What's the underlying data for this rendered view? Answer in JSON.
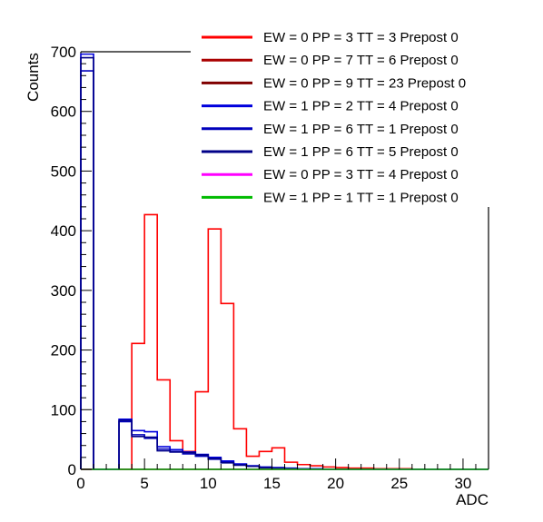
{
  "chart_data": {
    "type": "histogram",
    "xlabel": "ADC",
    "ylabel": "Counts",
    "xlim": [
      0,
      32
    ],
    "ylim": [
      0,
      700
    ],
    "xticks": [
      0,
      5,
      10,
      15,
      20,
      25,
      30
    ],
    "yticks": [
      0,
      100,
      200,
      300,
      400,
      500,
      600,
      700
    ],
    "bin_edges": [
      0,
      1,
      2,
      3,
      4,
      5,
      6,
      7,
      8,
      9,
      10,
      11,
      12,
      13,
      14,
      15,
      16,
      17,
      18,
      19,
      20,
      21,
      22,
      23,
      24,
      25,
      26,
      27,
      28,
      29,
      30,
      31,
      32
    ],
    "legend_position": "top-right",
    "series": [
      {
        "name": "EW = 0 PP = 3 TT = 3 Prepost 0",
        "color": "#ff0000",
        "values": [
          0,
          0,
          0,
          0,
          211,
          427,
          150,
          48,
          30,
          130,
          403,
          278,
          68,
          22,
          30,
          36,
          12,
          8,
          6,
          4,
          3,
          2,
          2,
          1,
          1,
          1,
          0,
          0,
          0,
          0,
          0,
          0
        ]
      },
      {
        "name": "EW = 0 PP = 7 TT = 6 Prepost 0",
        "color": "#aa0000",
        "values": [
          0,
          0,
          0,
          0,
          0,
          0,
          0,
          0,
          0,
          0,
          0,
          0,
          0,
          0,
          0,
          0,
          0,
          0,
          0,
          0,
          0,
          0,
          0,
          0,
          0,
          0,
          0,
          0,
          0,
          0,
          0,
          0
        ]
      },
      {
        "name": "EW = 0 PP = 9 TT = 23 Prepost 0",
        "color": "#800000",
        "values": [
          0,
          0,
          0,
          0,
          0,
          0,
          0,
          0,
          0,
          0,
          0,
          0,
          0,
          0,
          0,
          0,
          0,
          0,
          0,
          0,
          0,
          0,
          0,
          0,
          0,
          0,
          0,
          0,
          0,
          0,
          0,
          0
        ]
      },
      {
        "name": "EW = 1 PP = 2 TT = 4 Prepost 0",
        "color": "#0000dd",
        "values": [
          696,
          0,
          0,
          84,
          65,
          63,
          38,
          33,
          29,
          25,
          20,
          14,
          9,
          6,
          4,
          3,
          2,
          1,
          1,
          0,
          0,
          0,
          0,
          0,
          0,
          0,
          0,
          0,
          0,
          0,
          0,
          0
        ]
      },
      {
        "name": "EW = 1 PP = 6 TT = 1 Prepost 0",
        "color": "#0000bb",
        "values": [
          668,
          0,
          0,
          80,
          58,
          52,
          34,
          30,
          26,
          22,
          17,
          12,
          8,
          5,
          3,
          2,
          1,
          1,
          0,
          0,
          0,
          0,
          0,
          0,
          0,
          0,
          0,
          0,
          0,
          0,
          0,
          0
        ]
      },
      {
        "name": "EW = 1 PP = 6 TT = 5 Prepost 0",
        "color": "#000088",
        "values": [
          690,
          0,
          0,
          82,
          55,
          54,
          31,
          29,
          28,
          24,
          18,
          11,
          7,
          5,
          3,
          2,
          1,
          0,
          0,
          0,
          0,
          0,
          0,
          0,
          0,
          0,
          0,
          0,
          0,
          0,
          0,
          0
        ]
      },
      {
        "name": "EW = 0 PP = 3 TT = 4 Prepost 0",
        "color": "#ff00ff",
        "values": [
          0,
          0,
          0,
          0,
          0,
          0,
          0,
          0,
          0,
          0,
          0,
          0,
          0,
          0,
          0,
          0,
          0,
          0,
          0,
          0,
          0,
          0,
          0,
          0,
          0,
          0,
          0,
          0,
          0,
          0,
          0,
          0
        ]
      },
      {
        "name": "EW = 1 PP = 1 TT = 1 Prepost 0",
        "color": "#00bb00",
        "values": [
          0,
          0,
          0,
          0,
          0,
          0,
          0,
          0,
          0,
          0,
          0,
          0,
          0,
          0,
          0,
          0,
          0,
          0,
          0,
          0,
          0,
          0,
          0,
          0,
          0,
          0,
          0,
          0,
          0,
          0,
          0,
          0
        ]
      }
    ]
  }
}
